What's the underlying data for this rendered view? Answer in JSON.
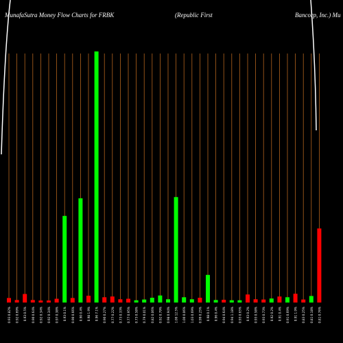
{
  "title": {
    "left": "MunafaSutra  Money Flow  Charts for FRBK",
    "middle": "(Republic First",
    "right": "Bancorp, Inc.) Mu"
  },
  "colors": {
    "background": "#000000",
    "grid": "#b5651d",
    "up": "#00ff00",
    "down": "#ff0000",
    "text": "#ffffff",
    "price_line": "#ffffff"
  },
  "chart_data": {
    "type": "bar",
    "ylim": [
      0,
      100
    ],
    "bars": [
      {
        "label": "0.93 0.82%",
        "value": 1.8,
        "dir": "down"
      },
      {
        "label": "0.92 0.69%",
        "value": 1.0,
        "dir": "down"
      },
      {
        "label": "0.93 0.5%",
        "value": 3.4,
        "dir": "down"
      },
      {
        "label": "0.90 0.64%",
        "value": 1.0,
        "dir": "down"
      },
      {
        "label": "0.92 0.34%",
        "value": 0.8,
        "dir": "down"
      },
      {
        "label": "0.92 0.34%",
        "value": 0.8,
        "dir": "down"
      },
      {
        "label": "0.97 0.38%",
        "value": 1.5,
        "dir": "down"
      },
      {
        "label": "0.93 0.1%",
        "value": 34.5,
        "dir": "up"
      },
      {
        "label": "0.90 0.66%",
        "value": 1.8,
        "dir": "down"
      },
      {
        "label": "0.90 0.4%",
        "value": 41.5,
        "dir": "up"
      },
      {
        "label": "0.98 1.9%",
        "value": 2.7,
        "dir": "down"
      },
      {
        "label": "0.96 7.1%",
        "value": 100,
        "dir": "up"
      },
      {
        "label": "0.90 0.27%",
        "value": 2.1,
        "dir": "down"
      },
      {
        "label": "0.77 0.22%",
        "value": 2.4,
        "dir": "down"
      },
      {
        "label": "0.73 0.33%",
        "value": 1.3,
        "dir": "down"
      },
      {
        "label": "0.77 0.95%",
        "value": 1.5,
        "dir": "down"
      },
      {
        "label": "0.73 0.58%",
        "value": 0.9,
        "dir": "up"
      },
      {
        "label": "0.79 0.01%",
        "value": 1.2,
        "dir": "up"
      },
      {
        "label": "0.82 0.06%",
        "value": 1.9,
        "dir": "up"
      },
      {
        "label": "0.92 0.79%",
        "value": 2.8,
        "dir": "up"
      },
      {
        "label": "0.98 0.94%",
        "value": 1.3,
        "dir": "up"
      },
      {
        "label": "1.00 12.5%",
        "value": 42.0,
        "dir": "up"
      },
      {
        "label": "1.00 0.06%",
        "value": 2.1,
        "dir": "up"
      },
      {
        "label": "1.03 0.69%",
        "value": 1.3,
        "dir": "up"
      },
      {
        "label": "0.99 0.25%",
        "value": 1.9,
        "dir": "down"
      },
      {
        "label": "0.98 0.1%",
        "value": 11.0,
        "dir": "up"
      },
      {
        "label": "0.96 0.4%",
        "value": 1.0,
        "dir": "up"
      },
      {
        "label": "0.94 0.64%",
        "value": 1.1,
        "dir": "down"
      },
      {
        "label": "0.94 1.18%",
        "value": 0.9,
        "dir": "up"
      },
      {
        "label": "0.93 0.65%",
        "value": 0.9,
        "dir": "up"
      },
      {
        "label": "0.93 0.2%",
        "value": 3.2,
        "dir": "down"
      },
      {
        "label": "0.93 0.58%",
        "value": 1.3,
        "dir": "down"
      },
      {
        "label": "0.93 0.73%",
        "value": 1.2,
        "dir": "down"
      },
      {
        "label": "0.92 0.2%",
        "value": 1.6,
        "dir": "up"
      },
      {
        "label": "0.91 0.4%",
        "value": 2.4,
        "dir": "down"
      },
      {
        "label": "0.91 0.69%",
        "value": 2.1,
        "dir": "up"
      },
      {
        "label": "0.91 1.9%",
        "value": 3.5,
        "dir": "down"
      },
      {
        "label": "0.83 0.25%",
        "value": 1.2,
        "dir": "down"
      },
      {
        "label": "0.81 0.18%",
        "value": 2.6,
        "dir": "up"
      },
      {
        "label": "0.81 0.76%",
        "value": 29.5,
        "dir": "down"
      }
    ]
  }
}
